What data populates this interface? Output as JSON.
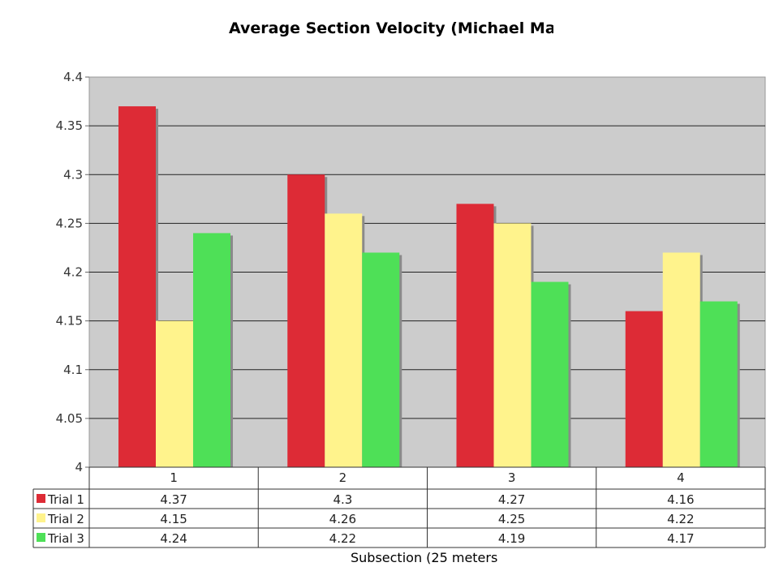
{
  "chart_data": {
    "type": "bar",
    "title": "Average Section Velocity (Michael Ma",
    "xlabel": "Subsection (25 meters",
    "ylabel": "",
    "ylim": [
      4,
      4.4
    ],
    "yticks": [
      "4",
      "4.05",
      "4.1",
      "4.15",
      "4.2",
      "4.25",
      "4.3",
      "4.35",
      "4.4"
    ],
    "categories": [
      "1",
      "2",
      "3",
      "4"
    ],
    "grid": true,
    "legend": "left, in data table",
    "series": [
      {
        "name": "Trial 1",
        "color": "#dd2b36",
        "values": [
          4.37,
          4.3,
          4.27,
          4.16
        ],
        "labels": [
          "4.37",
          "4.3",
          "4.27",
          "4.16"
        ]
      },
      {
        "name": "Trial 2",
        "color": "#fff38c",
        "values": [
          4.15,
          4.26,
          4.25,
          4.22
        ],
        "labels": [
          "4.15",
          "4.26",
          "4.25",
          "4.22"
        ]
      },
      {
        "name": "Trial 3",
        "color": "#4ee057",
        "values": [
          4.24,
          4.22,
          4.19,
          4.17
        ],
        "labels": [
          "4.24",
          "4.22",
          "4.19",
          "4.17"
        ]
      }
    ]
  }
}
